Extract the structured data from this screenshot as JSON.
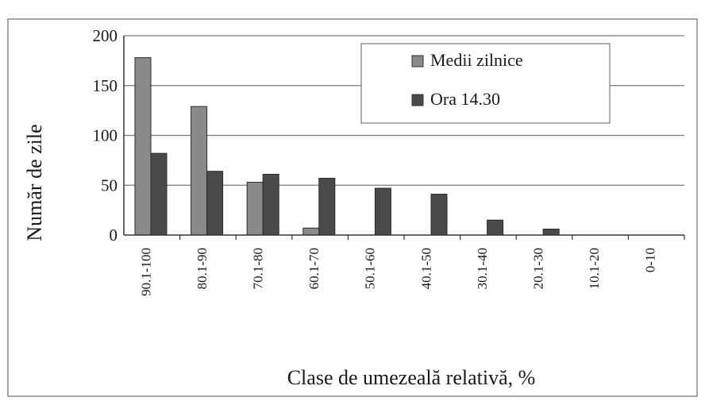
{
  "chart_data": {
    "type": "bar",
    "ylabel": "Număr de zile",
    "xlabel": "Clase de umezeală relativă, %",
    "ylim": [
      0,
      200
    ],
    "yticks": [
      0,
      50,
      100,
      150,
      200
    ],
    "grid": true,
    "legend_position": "top-right",
    "categories": [
      "90.1-100",
      "80.1-90",
      "70.1-80",
      "60.1-70",
      "50.1-60",
      "40.1-50",
      "30.1-40",
      "20.1-30",
      "10.1-20",
      "0-10"
    ],
    "series": [
      {
        "name": "Medii zilnice",
        "color": "#8a8a8a",
        "values": [
          178,
          129,
          53,
          7,
          0,
          0,
          0,
          0,
          0,
          0
        ]
      },
      {
        "name": "Ora 14.30",
        "color": "#4a4a4a",
        "values": [
          82,
          64,
          61,
          57,
          47,
          41,
          15,
          6,
          0,
          0
        ]
      }
    ]
  }
}
